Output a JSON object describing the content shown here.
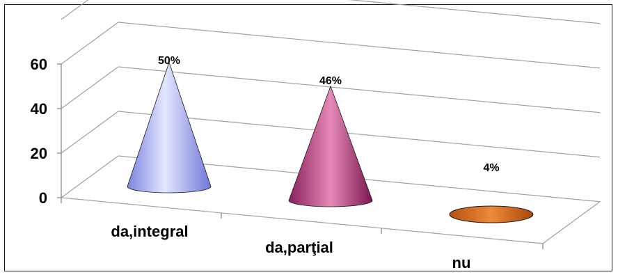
{
  "chart_data": {
    "type": "bar",
    "shape": "cone-3d",
    "categories": [
      "da,integral",
      "da,parţial",
      "nu"
    ],
    "values": [
      50,
      46,
      4
    ],
    "data_labels": [
      "50%",
      "46%",
      "4%"
    ],
    "y_ticks": [
      "0",
      "20",
      "40",
      "60"
    ],
    "ylim": [
      0,
      60
    ],
    "grid": true,
    "legend": "none",
    "colors": {
      "da,integral": "#9fa6f5",
      "da,parţial": "#b2397a",
      "nu": "#d26a1e"
    }
  }
}
